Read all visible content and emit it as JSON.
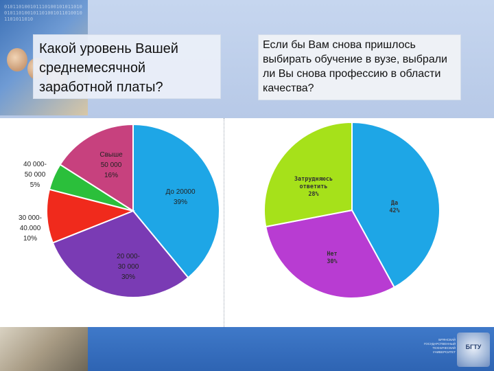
{
  "left_title": "Какой уровень Вашей среднемесячной заработной платы?",
  "right_title": "Если бы Вам снова пришлось выбирать обучение в вузе, выбрали ли Вы снова профессию в области качества?",
  "logo": {
    "caption": "БРЯНСКИЙ ГОСУДАРСТВЕННЫЙ ТЕХНИЧЕСКИЙ УНИВЕРСИТЕТ",
    "badge": "БГТУ"
  },
  "colors": {
    "light_blue": "#1ea6e6",
    "purple": "#7a3bb4",
    "red": "#f02a1c",
    "green": "#2bbf3b",
    "pink": "#c7417e",
    "lime": "#a6e11a",
    "magenta": "#b83cd2"
  },
  "chart_data": [
    {
      "type": "pie",
      "title": "Какой уровень Вашей среднемесячной заработной платы?",
      "slices": [
        {
          "label": [
            "До 20000",
            "39%"
          ],
          "value": 39,
          "color": "#1ea6e6"
        },
        {
          "label": [
            "20 000-",
            "30 000",
            "30%"
          ],
          "value": 30,
          "color": "#7a3bb4"
        },
        {
          "label": [
            "30 000-",
            "40.000",
            "10%"
          ],
          "value": 10,
          "color": "#f02a1c"
        },
        {
          "label": [
            "40 000-",
            "50 000",
            "5%"
          ],
          "value": 5,
          "color": "#2bbf3b"
        },
        {
          "label": [
            "Свыше",
            "50 000",
            "16%"
          ],
          "value": 16,
          "color": "#c7417e"
        }
      ]
    },
    {
      "type": "pie",
      "title": "Если бы Вам снова пришлось выбирать обучение в вузе, выбрали ли Вы снова профессию в области качества?",
      "slices": [
        {
          "label": [
            "Да",
            "42%"
          ],
          "value": 42,
          "color": "#1ea6e6"
        },
        {
          "label": [
            "Нет",
            "30%"
          ],
          "value": 30,
          "color": "#b83cd2"
        },
        {
          "label": [
            "Затрудняюсь",
            "ответить",
            "28%"
          ],
          "value": 28,
          "color": "#a6e11a"
        }
      ]
    }
  ]
}
